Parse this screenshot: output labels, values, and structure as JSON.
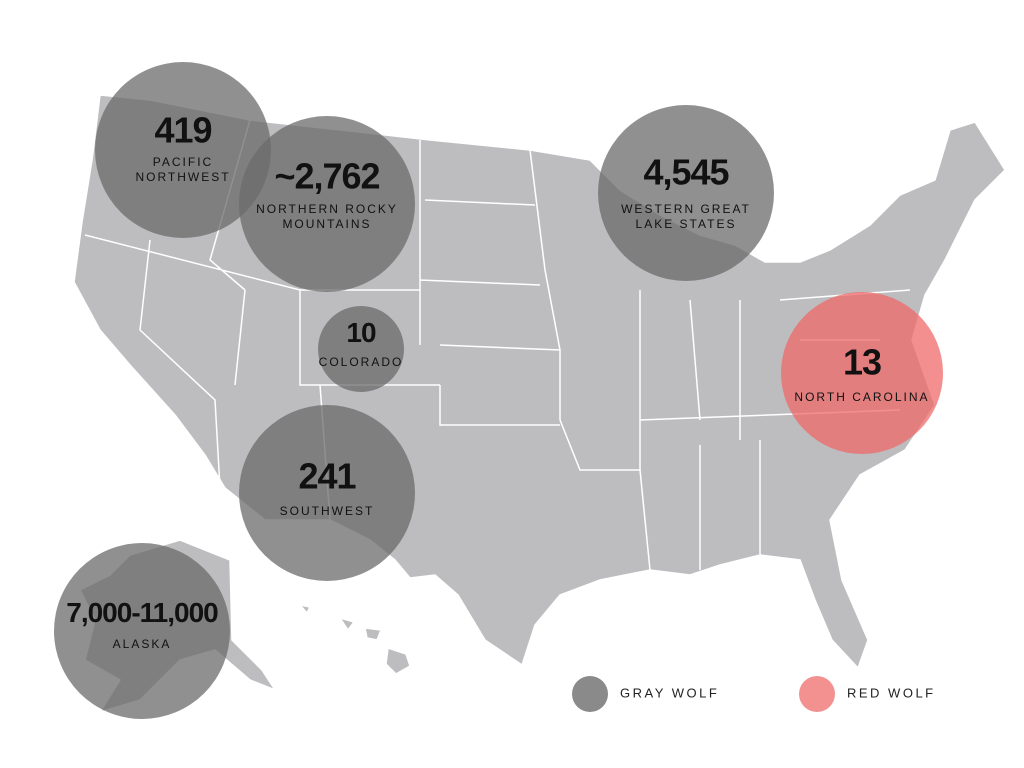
{
  "regions": [
    {
      "value": "419",
      "name": [
        "PACIFIC",
        "NORTHWEST"
      ],
      "color": "#6b6b6b"
    },
    {
      "value": "~2,762",
      "name": [
        "NORTHERN ROCKY",
        "MOUNTAINS"
      ],
      "color": "#6b6b6b"
    },
    {
      "value": "4,545",
      "name": [
        "WESTERN GREAT",
        "LAKE STATES"
      ],
      "color": "#6b6b6b"
    },
    {
      "value": "10",
      "name": [
        "COLORADO"
      ],
      "color": "#6b6b6b"
    },
    {
      "value": "13",
      "name": [
        "NORTH CAROLINA"
      ],
      "color": "#f06a6a"
    },
    {
      "value": "241",
      "name": [
        "SOUTHWEST"
      ],
      "color": "#6b6b6b"
    },
    {
      "value": "7,000-11,000",
      "name": [
        "ALASKA"
      ],
      "color": "#6b6b6b"
    }
  ],
  "legend": [
    {
      "label": "GRAY WOLF",
      "color": "#8a8a8a"
    },
    {
      "label": "RED WOLF",
      "color": "#f39090"
    }
  ]
}
